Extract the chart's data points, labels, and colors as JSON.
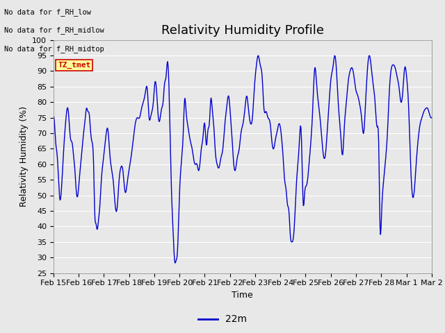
{
  "title": "Relativity Humidity Profile",
  "xlabel": "Time",
  "ylabel": "Relativity Humidity (%)",
  "ylim": [
    25,
    100
  ],
  "yticks": [
    25,
    30,
    35,
    40,
    45,
    50,
    55,
    60,
    65,
    70,
    75,
    80,
    85,
    90,
    95,
    100
  ],
  "line_color": "#0000CC",
  "line_width": 1.0,
  "legend_label": "22m",
  "legend_line_color": "#0000CC",
  "bg_color": "#E8E8E8",
  "annotations": [
    "No data for f_RH_low",
    "No data for f_RH_midlow",
    "No data for f_RH_midtop"
  ],
  "tz_tmet_label": "TZ_tmet",
  "tz_tmet_color": "#CC0000",
  "tz_tmet_bg": "#FFFF99",
  "xtick_labels": [
    "Feb 15",
    "Feb 16",
    "Feb 17",
    "Feb 18",
    "Feb 19",
    "Feb 20",
    "Feb 21",
    "Feb 22",
    "Feb 23",
    "Feb 24",
    "Feb 25",
    "Feb 26",
    "Feb 27",
    "Feb 28",
    "Mar 1",
    "Mar 2"
  ],
  "title_fontsize": 13,
  "axis_label_fontsize": 9,
  "tick_fontsize": 8,
  "keypoints": [
    [
      0.0,
      75
    ],
    [
      0.04,
      73
    ],
    [
      0.08,
      67
    ],
    [
      0.13,
      63
    ],
    [
      0.18,
      55
    ],
    [
      0.22,
      49
    ],
    [
      0.28,
      52
    ],
    [
      0.33,
      60
    ],
    [
      0.38,
      68
    ],
    [
      0.43,
      74
    ],
    [
      0.48,
      78
    ],
    [
      0.52,
      77
    ],
    [
      0.56,
      72
    ],
    [
      0.6,
      68
    ],
    [
      0.65,
      67
    ],
    [
      0.7,
      63
    ],
    [
      0.75,
      58
    ],
    [
      0.8,
      51
    ],
    [
      0.85,
      50
    ],
    [
      0.9,
      55
    ],
    [
      0.95,
      60
    ],
    [
      1.0,
      65
    ],
    [
      1.05,
      70
    ],
    [
      1.1,
      74
    ],
    [
      1.15,
      78
    ],
    [
      1.2,
      77
    ],
    [
      1.25,
      76
    ],
    [
      1.3,
      70
    ],
    [
      1.35,
      67
    ],
    [
      1.4,
      60
    ],
    [
      1.44,
      44
    ],
    [
      1.48,
      41
    ],
    [
      1.52,
      39
    ],
    [
      1.57,
      42
    ],
    [
      1.62,
      47
    ],
    [
      1.67,
      55
    ],
    [
      1.72,
      60
    ],
    [
      1.78,
      65
    ],
    [
      1.84,
      70
    ],
    [
      1.9,
      71
    ],
    [
      1.95,
      65
    ],
    [
      2.0,
      60
    ],
    [
      2.05,
      57
    ],
    [
      2.1,
      53
    ],
    [
      2.15,
      47
    ],
    [
      2.22,
      46
    ],
    [
      2.28,
      54
    ],
    [
      2.35,
      59
    ],
    [
      2.42,
      58
    ],
    [
      2.5,
      51
    ],
    [
      2.57,
      54
    ],
    [
      2.63,
      58
    ],
    [
      2.7,
      62
    ],
    [
      2.78,
      68
    ],
    [
      2.85,
      73
    ],
    [
      2.92,
      75
    ],
    [
      3.0,
      75
    ],
    [
      3.07,
      78
    ],
    [
      3.13,
      80
    ],
    [
      3.2,
      83
    ],
    [
      3.27,
      84
    ],
    [
      3.33,
      75
    ],
    [
      3.38,
      75
    ],
    [
      3.43,
      77
    ],
    [
      3.48,
      80
    ],
    [
      3.53,
      86
    ],
    [
      3.58,
      85
    ],
    [
      3.63,
      78
    ],
    [
      3.67,
      74
    ],
    [
      3.72,
      75
    ],
    [
      3.77,
      78
    ],
    [
      3.82,
      80
    ],
    [
      3.87,
      86
    ],
    [
      3.92,
      88
    ],
    [
      3.97,
      93
    ],
    [
      4.02,
      86
    ],
    [
      4.07,
      67
    ],
    [
      4.12,
      49
    ],
    [
      4.17,
      38
    ],
    [
      4.22,
      29
    ],
    [
      4.27,
      29
    ],
    [
      4.32,
      32
    ],
    [
      4.38,
      48
    ],
    [
      4.45,
      60
    ],
    [
      4.52,
      70
    ],
    [
      4.57,
      81
    ],
    [
      4.62,
      77
    ],
    [
      4.67,
      73
    ],
    [
      4.72,
      70
    ],
    [
      4.78,
      67
    ],
    [
      4.83,
      65
    ],
    [
      4.88,
      62
    ],
    [
      4.93,
      60
    ],
    [
      5.0,
      60
    ],
    [
      5.05,
      58
    ],
    [
      5.1,
      60
    ],
    [
      5.15,
      65
    ],
    [
      5.2,
      68
    ],
    [
      5.27,
      73
    ],
    [
      5.33,
      66
    ],
    [
      5.38,
      71
    ],
    [
      5.43,
      73
    ],
    [
      5.48,
      81
    ],
    [
      5.53,
      78
    ],
    [
      5.58,
      73
    ],
    [
      5.63,
      65
    ],
    [
      5.7,
      60
    ],
    [
      5.77,
      59
    ],
    [
      5.83,
      62
    ],
    [
      5.9,
      65
    ],
    [
      5.97,
      73
    ],
    [
      6.03,
      78
    ],
    [
      6.1,
      82
    ],
    [
      6.17,
      75
    ],
    [
      6.23,
      67
    ],
    [
      6.28,
      60
    ],
    [
      6.33,
      58
    ],
    [
      6.4,
      62
    ],
    [
      6.47,
      65
    ],
    [
      6.53,
      70
    ],
    [
      6.6,
      73
    ],
    [
      6.67,
      78
    ],
    [
      6.73,
      82
    ],
    [
      6.8,
      77
    ],
    [
      6.87,
      73
    ],
    [
      6.93,
      75
    ],
    [
      7.0,
      85
    ],
    [
      7.07,
      92
    ],
    [
      7.13,
      95
    ],
    [
      7.2,
      92
    ],
    [
      7.27,
      88
    ],
    [
      7.33,
      78
    ],
    [
      7.4,
      77
    ],
    [
      7.47,
      75
    ],
    [
      7.55,
      73
    ],
    [
      7.6,
      68
    ],
    [
      7.67,
      65
    ],
    [
      7.73,
      68
    ],
    [
      7.8,
      71
    ],
    [
      7.85,
      73
    ],
    [
      7.9,
      72
    ],
    [
      7.95,
      68
    ],
    [
      8.0,
      62
    ],
    [
      8.05,
      55
    ],
    [
      8.1,
      52
    ],
    [
      8.15,
      47
    ],
    [
      8.2,
      45
    ],
    [
      8.25,
      37
    ],
    [
      8.3,
      35
    ],
    [
      8.35,
      36
    ],
    [
      8.4,
      42
    ],
    [
      8.47,
      55
    ],
    [
      8.55,
      65
    ],
    [
      8.63,
      70
    ],
    [
      8.7,
      47
    ],
    [
      8.75,
      51
    ],
    [
      8.8,
      53
    ],
    [
      8.85,
      55
    ],
    [
      8.9,
      60
    ],
    [
      8.97,
      68
    ],
    [
      9.03,
      78
    ],
    [
      9.1,
      91
    ],
    [
      9.17,
      85
    ],
    [
      9.25,
      78
    ],
    [
      9.33,
      70
    ],
    [
      9.4,
      63
    ],
    [
      9.47,
      63
    ],
    [
      9.53,
      70
    ],
    [
      9.6,
      80
    ],
    [
      9.67,
      88
    ],
    [
      9.73,
      91
    ],
    [
      9.8,
      95
    ],
    [
      9.87,
      88
    ],
    [
      9.93,
      78
    ],
    [
      10.0,
      70
    ],
    [
      10.07,
      63
    ],
    [
      10.13,
      72
    ],
    [
      10.2,
      80
    ],
    [
      10.27,
      87
    ],
    [
      10.33,
      90
    ],
    [
      10.4,
      91
    ],
    [
      10.47,
      88
    ],
    [
      10.53,
      84
    ],
    [
      10.6,
      82
    ],
    [
      10.67,
      79
    ],
    [
      10.73,
      75
    ],
    [
      10.8,
      70
    ],
    [
      10.87,
      80
    ],
    [
      10.93,
      90
    ],
    [
      11.0,
      95
    ],
    [
      11.07,
      91
    ],
    [
      11.13,
      86
    ],
    [
      11.2,
      80
    ],
    [
      11.27,
      72
    ],
    [
      11.33,
      65
    ],
    [
      11.37,
      41
    ],
    [
      11.43,
      45
    ],
    [
      11.5,
      55
    ],
    [
      11.57,
      62
    ],
    [
      11.63,
      70
    ],
    [
      11.7,
      84
    ],
    [
      11.77,
      91
    ],
    [
      11.83,
      92
    ],
    [
      11.9,
      91
    ],
    [
      11.97,
      88
    ],
    [
      12.03,
      85
    ],
    [
      12.1,
      80
    ],
    [
      12.17,
      84
    ],
    [
      12.23,
      91
    ],
    [
      12.3,
      88
    ],
    [
      12.37,
      78
    ],
    [
      12.43,
      62
    ],
    [
      12.5,
      50
    ],
    [
      12.57,
      52
    ],
    [
      12.63,
      60
    ],
    [
      12.7,
      68
    ],
    [
      12.77,
      73
    ],
    [
      12.83,
      75
    ],
    [
      12.9,
      77
    ],
    [
      12.97,
      78
    ],
    [
      13.03,
      78
    ],
    [
      13.1,
      76
    ],
    [
      13.17,
      75
    ]
  ]
}
